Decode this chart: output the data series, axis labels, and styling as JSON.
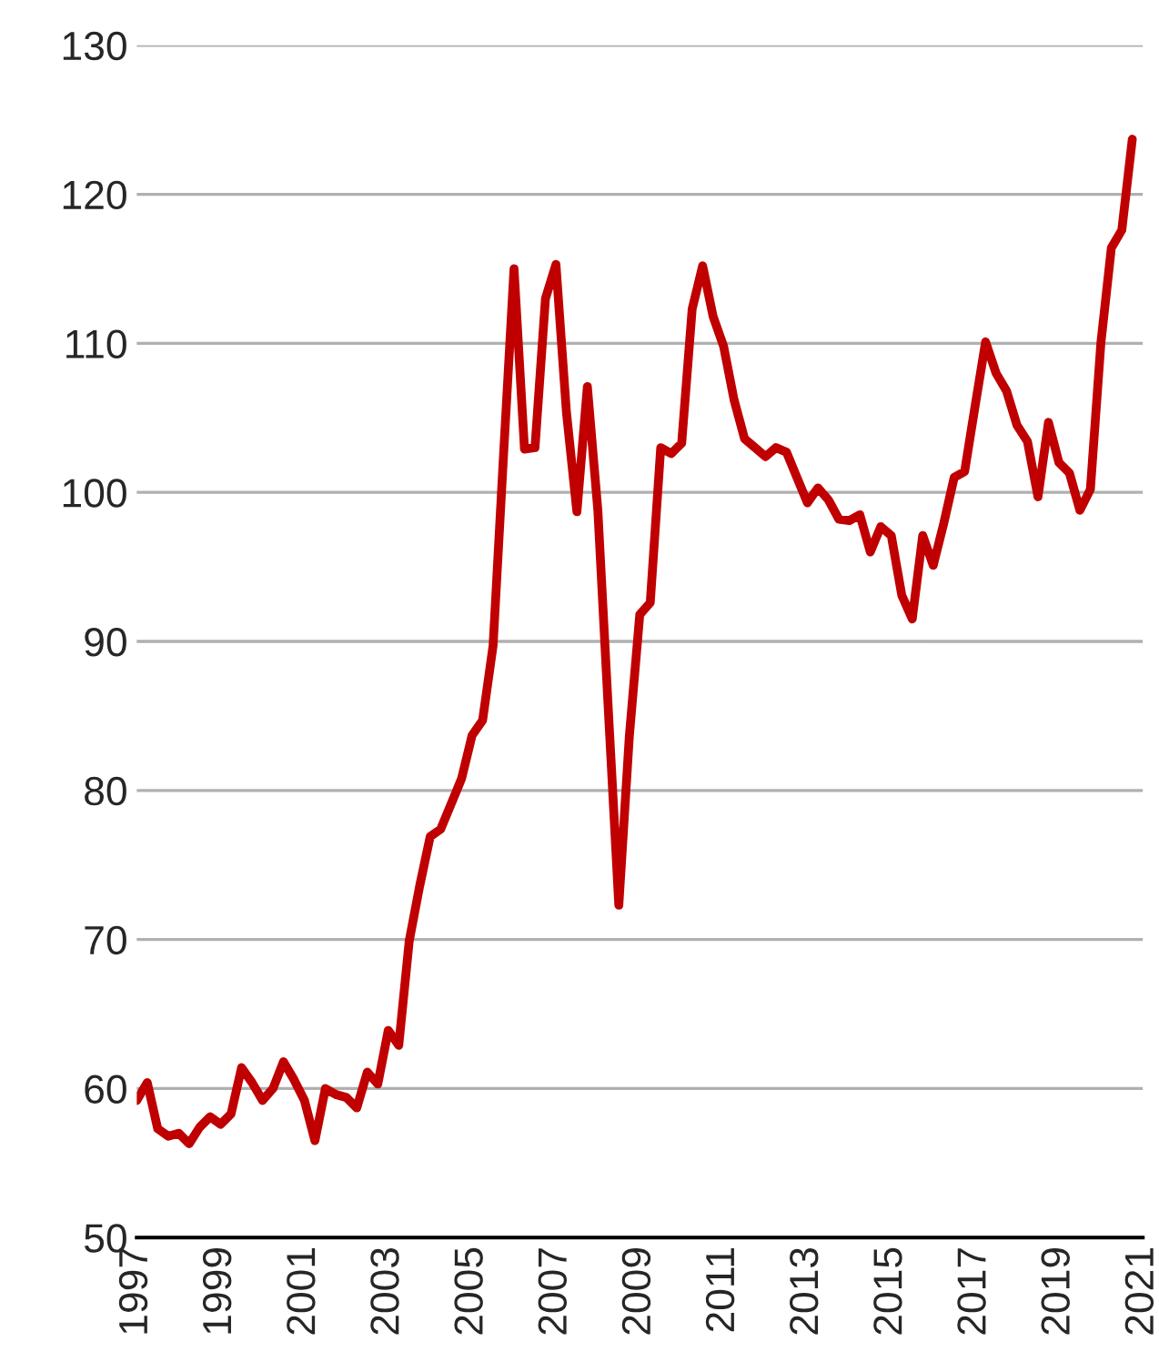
{
  "chart_data": {
    "type": "line",
    "x": [
      1997.0,
      1997.25,
      1997.5,
      1997.75,
      1998.0,
      1998.25,
      1998.5,
      1998.75,
      1999.0,
      1999.25,
      1999.5,
      1999.75,
      2000.0,
      2000.25,
      2000.5,
      2000.75,
      2001.0,
      2001.25,
      2001.5,
      2001.75,
      2002.0,
      2002.25,
      2002.5,
      2002.75,
      2003.0,
      2003.25,
      2003.5,
      2003.75,
      2004.0,
      2004.25,
      2004.5,
      2004.75,
      2005.0,
      2005.25,
      2005.5,
      2005.75,
      2006.0,
      2006.25,
      2006.5,
      2006.75,
      2007.0,
      2007.25,
      2007.5,
      2007.75,
      2008.0,
      2008.25,
      2008.5,
      2008.75,
      2009.0,
      2009.25,
      2009.5,
      2009.75,
      2010.0,
      2010.25,
      2010.5,
      2010.75,
      2011.0,
      2011.25,
      2011.5,
      2011.75,
      2012.0,
      2012.25,
      2012.5,
      2012.75,
      2013.0,
      2013.25,
      2013.5,
      2013.75,
      2014.0,
      2014.25,
      2014.5,
      2014.75,
      2015.0,
      2015.25,
      2015.5,
      2015.75,
      2016.0,
      2016.25,
      2016.5,
      2016.75,
      2017.0,
      2017.25,
      2017.5,
      2017.75,
      2018.0,
      2018.25,
      2018.5,
      2018.75,
      2019.0,
      2019.25,
      2019.5,
      2019.75,
      2020.0,
      2020.25,
      2020.5,
      2020.75
    ],
    "series": [
      {
        "color": "#c00000",
        "values": [
          59.2,
          60.4,
          57.3,
          56.8,
          57.0,
          56.3,
          57.4,
          58.1,
          57.6,
          58.3,
          61.4,
          60.4,
          59.2,
          60.0,
          61.8,
          60.6,
          59.2,
          56.5,
          60.0,
          59.6,
          59.4,
          58.7,
          61.1,
          60.3,
          63.9,
          62.9,
          69.9,
          73.6,
          76.9,
          77.4,
          79.1,
          80.8,
          83.7,
          84.7,
          89.7,
          102.5,
          115.0,
          102.9,
          103.0,
          113.0,
          115.3,
          105.4,
          98.7,
          107.1,
          98.8,
          85.4,
          72.3,
          83.6,
          91.8,
          92.6,
          103.0,
          102.6,
          103.3,
          112.3,
          115.2,
          111.8,
          109.8,
          106.2,
          103.6,
          103.0,
          102.4,
          103.0,
          102.7,
          101.0,
          99.3,
          100.3,
          99.5,
          98.2,
          98.1,
          98.5,
          96.0,
          97.7,
          97.1,
          93.1,
          91.5,
          97.1,
          95.1,
          97.9,
          101.0,
          101.4,
          105.8,
          110.1,
          108.0,
          106.8,
          104.5,
          103.4,
          99.7,
          104.7,
          102.0,
          101.3,
          98.8,
          100.2,
          110.0,
          116.4,
          117.6,
          123.7
        ]
      }
    ],
    "xlim": [
      1997,
      2021
    ],
    "xticks": [
      1997,
      1999,
      2001,
      2003,
      2005,
      2007,
      2009,
      2011,
      2013,
      2015,
      2017,
      2019,
      2021
    ],
    "ylim": [
      50,
      130
    ],
    "yticks": [
      50,
      60,
      70,
      80,
      90,
      100,
      110,
      120,
      130
    ],
    "grid": "y",
    "legend": false,
    "line_style": "solid",
    "marker": "none"
  }
}
